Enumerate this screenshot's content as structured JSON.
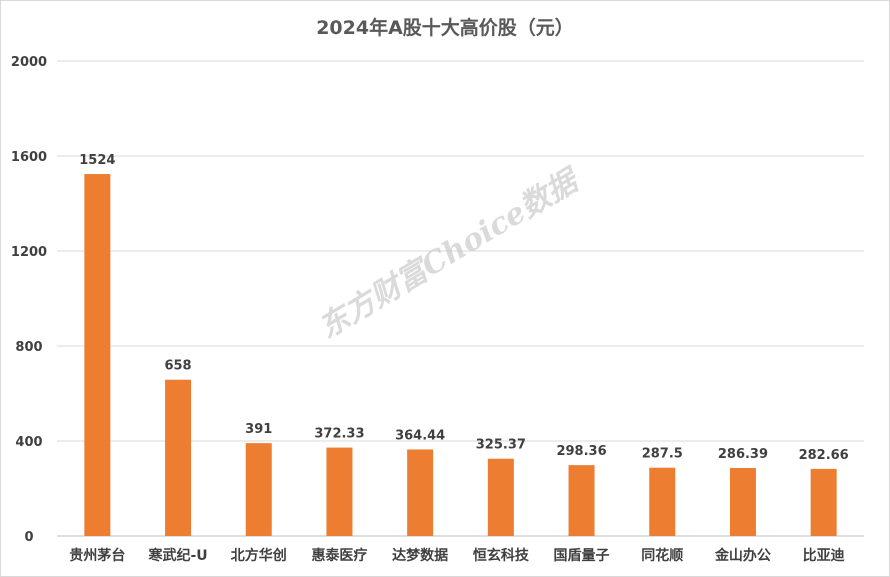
{
  "watermark": "东方财富Choice数据",
  "chart_data": {
    "type": "bar",
    "title": "2024年A股十大高价股（元）",
    "xlabel": "",
    "ylabel": "",
    "ylim": [
      0,
      2000
    ],
    "yticks": [
      0,
      400,
      800,
      1200,
      1600,
      2000
    ],
    "grid": true,
    "legend": "none",
    "bar_color": "#ED7D31",
    "categories": [
      "贵州茅台",
      "寒武纪-U",
      "北方华创",
      "惠泰医疗",
      "达梦数据",
      "恒玄科技",
      "国盾量子",
      "同花顺",
      "金山办公",
      "比亚迪"
    ],
    "values": [
      1524,
      658,
      391,
      372.33,
      364.44,
      325.37,
      298.36,
      287.5,
      286.39,
      282.66
    ],
    "value_labels": [
      "1524",
      "658",
      "391",
      "372.33",
      "364.44",
      "325.37",
      "298.36",
      "287.5",
      "286.39",
      "282.66"
    ]
  }
}
